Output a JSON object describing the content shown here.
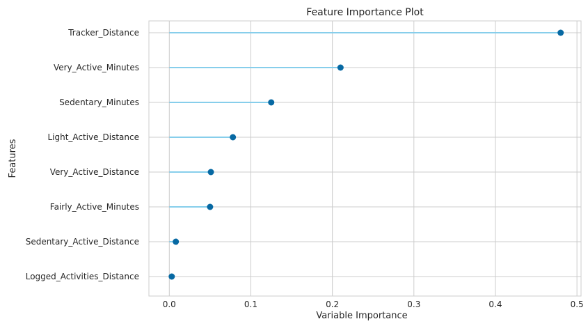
{
  "chart_data": {
    "type": "lollipop",
    "title": "Feature Importance Plot",
    "xlabel": "Variable Importance",
    "ylabel": "Features",
    "xlim": [
      -0.025,
      0.505
    ],
    "xticks": [
      0.0,
      0.1,
      0.2,
      0.3,
      0.4,
      0.5
    ],
    "xtick_labels": [
      "0.0",
      "0.1",
      "0.2",
      "0.3",
      "0.4",
      "0.5"
    ],
    "grid": true,
    "stem_color": "#87ceeb",
    "marker_color": "#0769a3",
    "categories": [
      "Tracker_Distance",
      "Very_Active_Minutes",
      "Sedentary_Minutes",
      "Light_Active_Distance",
      "Very_Active_Distance",
      "Fairly_Active_Minutes",
      "Sedentary_Active_Distance",
      "Logged_Activities_Distance"
    ],
    "values": [
      0.48,
      0.21,
      0.125,
      0.078,
      0.051,
      0.05,
      0.008,
      0.003
    ]
  }
}
